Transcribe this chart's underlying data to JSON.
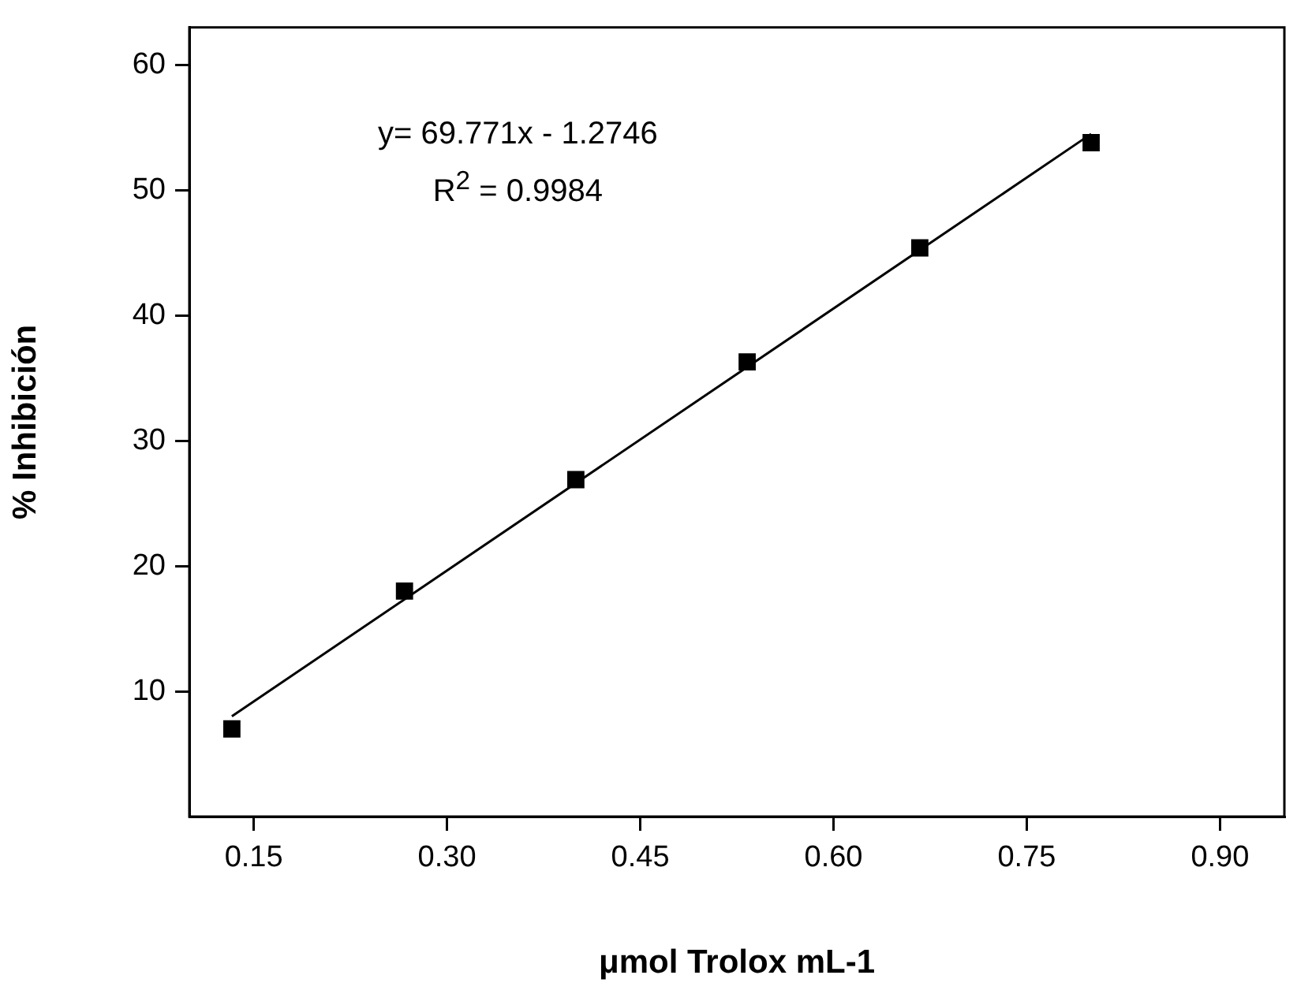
{
  "chart_data": {
    "type": "scatter",
    "xlabel": "μmol Trolox mL-1",
    "ylabel": "% Inhibición",
    "xlim": [
      0.1,
      0.95
    ],
    "xticks": [
      {
        "value": 0.15,
        "label": "0.15"
      },
      {
        "value": 0.3,
        "label": "0.30"
      },
      {
        "value": 0.45,
        "label": "0.45"
      },
      {
        "value": 0.6,
        "label": "0.60"
      },
      {
        "value": 0.75,
        "label": "0.75"
      },
      {
        "value": 0.9,
        "label": "0.90"
      }
    ],
    "ylim": [
      0,
      63
    ],
    "yticks": [
      10,
      20,
      30,
      40,
      50,
      60
    ],
    "marker": "square",
    "grid": false,
    "legend": false,
    "annotations": [
      "y= 69.771x - 1.2746",
      "R$^{2}$ = 0.9984"
    ],
    "series": [
      {
        "color": "#000000",
        "x": [
          0.133,
          0.267,
          0.4,
          0.533,
          0.667,
          0.8
        ],
        "values": [
          7.0,
          18.0,
          26.9,
          36.3,
          45.4,
          53.8
        ]
      },
      {
        "type": "line",
        "color": "#000000",
        "x": [
          0.133,
          0.8
        ],
        "values": [
          8.0,
          54.5
        ],
        "marker": "none",
        "line_style": "solid"
      }
    ]
  }
}
